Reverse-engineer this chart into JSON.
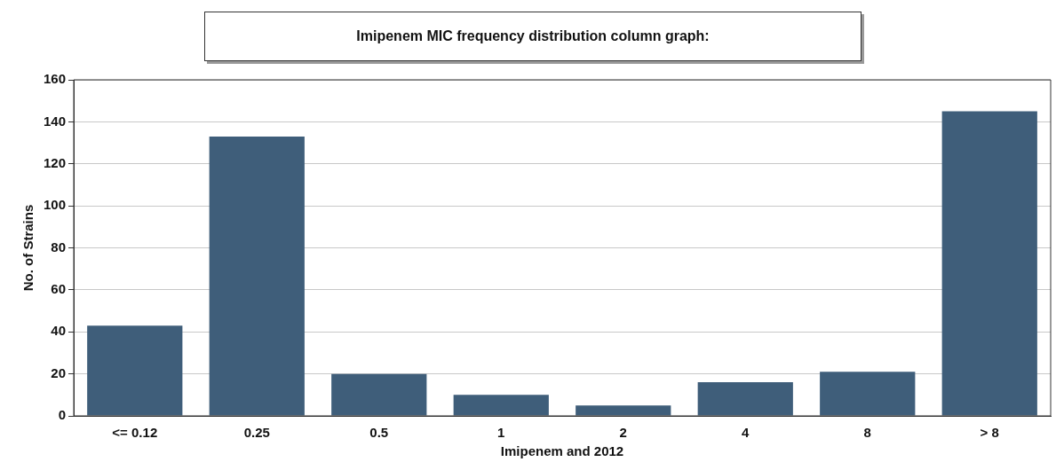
{
  "chart_data": {
    "type": "bar",
    "title": "Imipenem MIC frequency distribution column graph:",
    "xlabel": "Imipenem and 2012",
    "ylabel": "No. of Strains",
    "categories": [
      "<= 0.12",
      "0.25",
      "0.5",
      "1",
      "2",
      "4",
      "8",
      "> 8"
    ],
    "values": [
      43,
      133,
      20,
      10,
      5,
      16,
      21,
      145
    ],
    "color": "#3f5e7a",
    "ylim": [
      0,
      160
    ],
    "yticks": [
      0,
      20,
      40,
      60,
      80,
      100,
      120,
      140,
      160
    ],
    "grid": "y",
    "legend": false
  }
}
